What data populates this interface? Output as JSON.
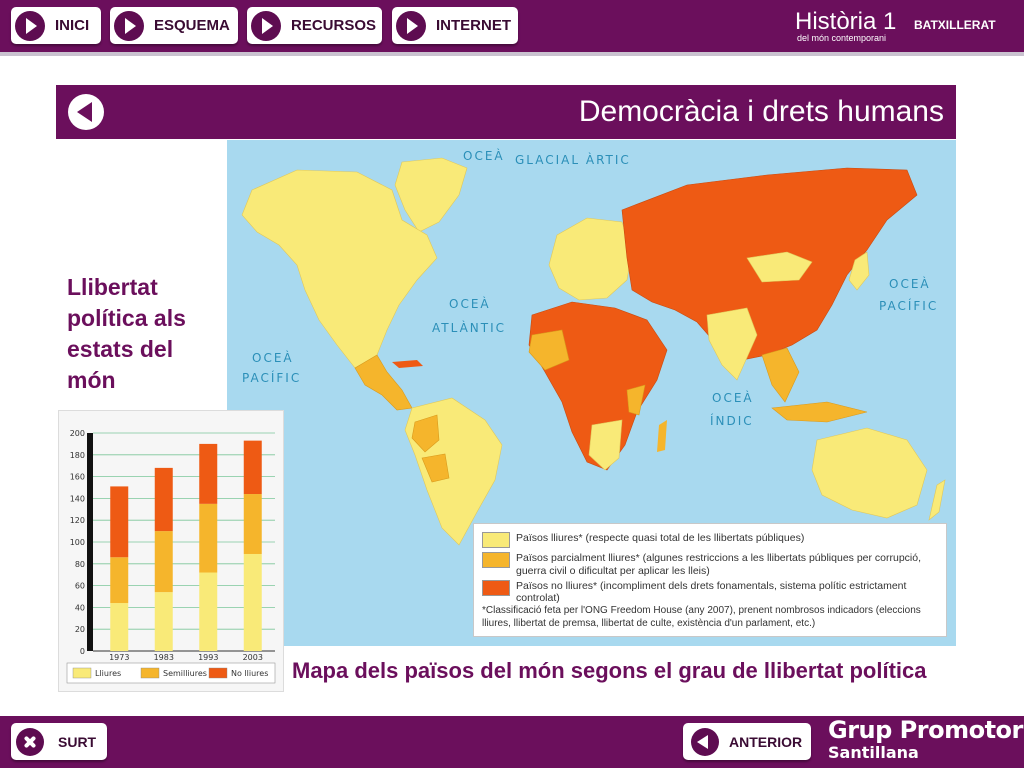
{
  "nav": {
    "buttons": [
      {
        "label": "INICI"
      },
      {
        "label": "ESQUEMA"
      },
      {
        "label": "RECURSOS"
      },
      {
        "label": "INTERNET"
      }
    ]
  },
  "brand": {
    "title": "Història 1",
    "level": "BATXILLERAT",
    "subtitle": "del món contemporani"
  },
  "header": {
    "title": "Democràcia i drets humans"
  },
  "side_title": "Llibertat política als estats del món",
  "map": {
    "oceans": [
      "OCEÀ GLACIAL ÀRTIC",
      "OCEÀ ATLÀNTIC",
      "OCEÀ PACÍFIC",
      "OCEÀ PACÍFIC",
      "OCEÀ ÍNDIC"
    ],
    "legend": [
      {
        "label": "Països lliures*",
        "desc": "(respecte quasi total de les llibertats públiques)",
        "color": "#f9ea78"
      },
      {
        "label": "Països parcialment lliures*",
        "desc": "(algunes restriccions a les llibertats públiques per corrupció, guerra civil o dificultat per aplicar les lleis)",
        "color": "#f5b52c"
      },
      {
        "label": "Països no lliures*",
        "desc": "(incompliment dels drets fonamentals, sistema polític estrictament controlat)",
        "color": "#ee5a14"
      }
    ],
    "note": "*Classificació feta per l'ONG Freedom House (any 2007), prenent nombrosos indicadors (eleccions lliures, llibertat de premsa, llibertat de culte, existència d'un parlament, etc.)"
  },
  "chart_data": {
    "type": "bar",
    "stacked": true,
    "categories": [
      "1973",
      "1983",
      "1993",
      "2003"
    ],
    "series": [
      {
        "name": "Lliures",
        "color": "#f9ea78",
        "values": [
          44,
          54,
          72,
          89
        ]
      },
      {
        "name": "Semilliures",
        "color": "#f5b52c",
        "values": [
          42,
          56,
          63,
          55
        ]
      },
      {
        "name": "No lliures",
        "color": "#ee5a14",
        "values": [
          65,
          58,
          55,
          49
        ]
      }
    ],
    "ylim": [
      0,
      200
    ],
    "yticks": [
      0,
      20,
      40,
      60,
      80,
      100,
      120,
      140,
      160,
      180,
      200
    ],
    "grid": true,
    "legend_position": "bottom"
  },
  "caption": "Mapa dels països del món segons el grau de llibertat política",
  "footer": {
    "exit_label": "SURT",
    "prev_label": "ANTERIOR",
    "publisher": "Grup Promotor",
    "publisher_sub": "Santillana"
  },
  "colors": {
    "primary": "#6b0f5c",
    "ocean": "#a8d9ef",
    "free": "#f9ea78",
    "partly": "#f5b52c",
    "notfree": "#ee5a14"
  }
}
